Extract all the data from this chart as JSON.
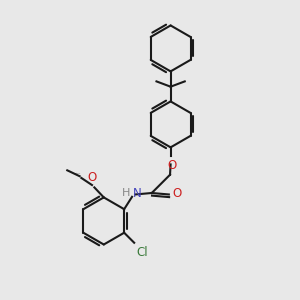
{
  "bg_color": "#e8e8e8",
  "bond_color": "#1a1a1a",
  "N_color": "#4444bb",
  "O_color": "#cc2020",
  "Cl_color": "#3a7a3a",
  "lw": 1.5,
  "fs": 8.5,
  "fig_size": [
    3.0,
    3.0
  ],
  "dpi": 100,
  "xlim": [
    0,
    10
  ],
  "ylim": [
    0,
    10
  ]
}
